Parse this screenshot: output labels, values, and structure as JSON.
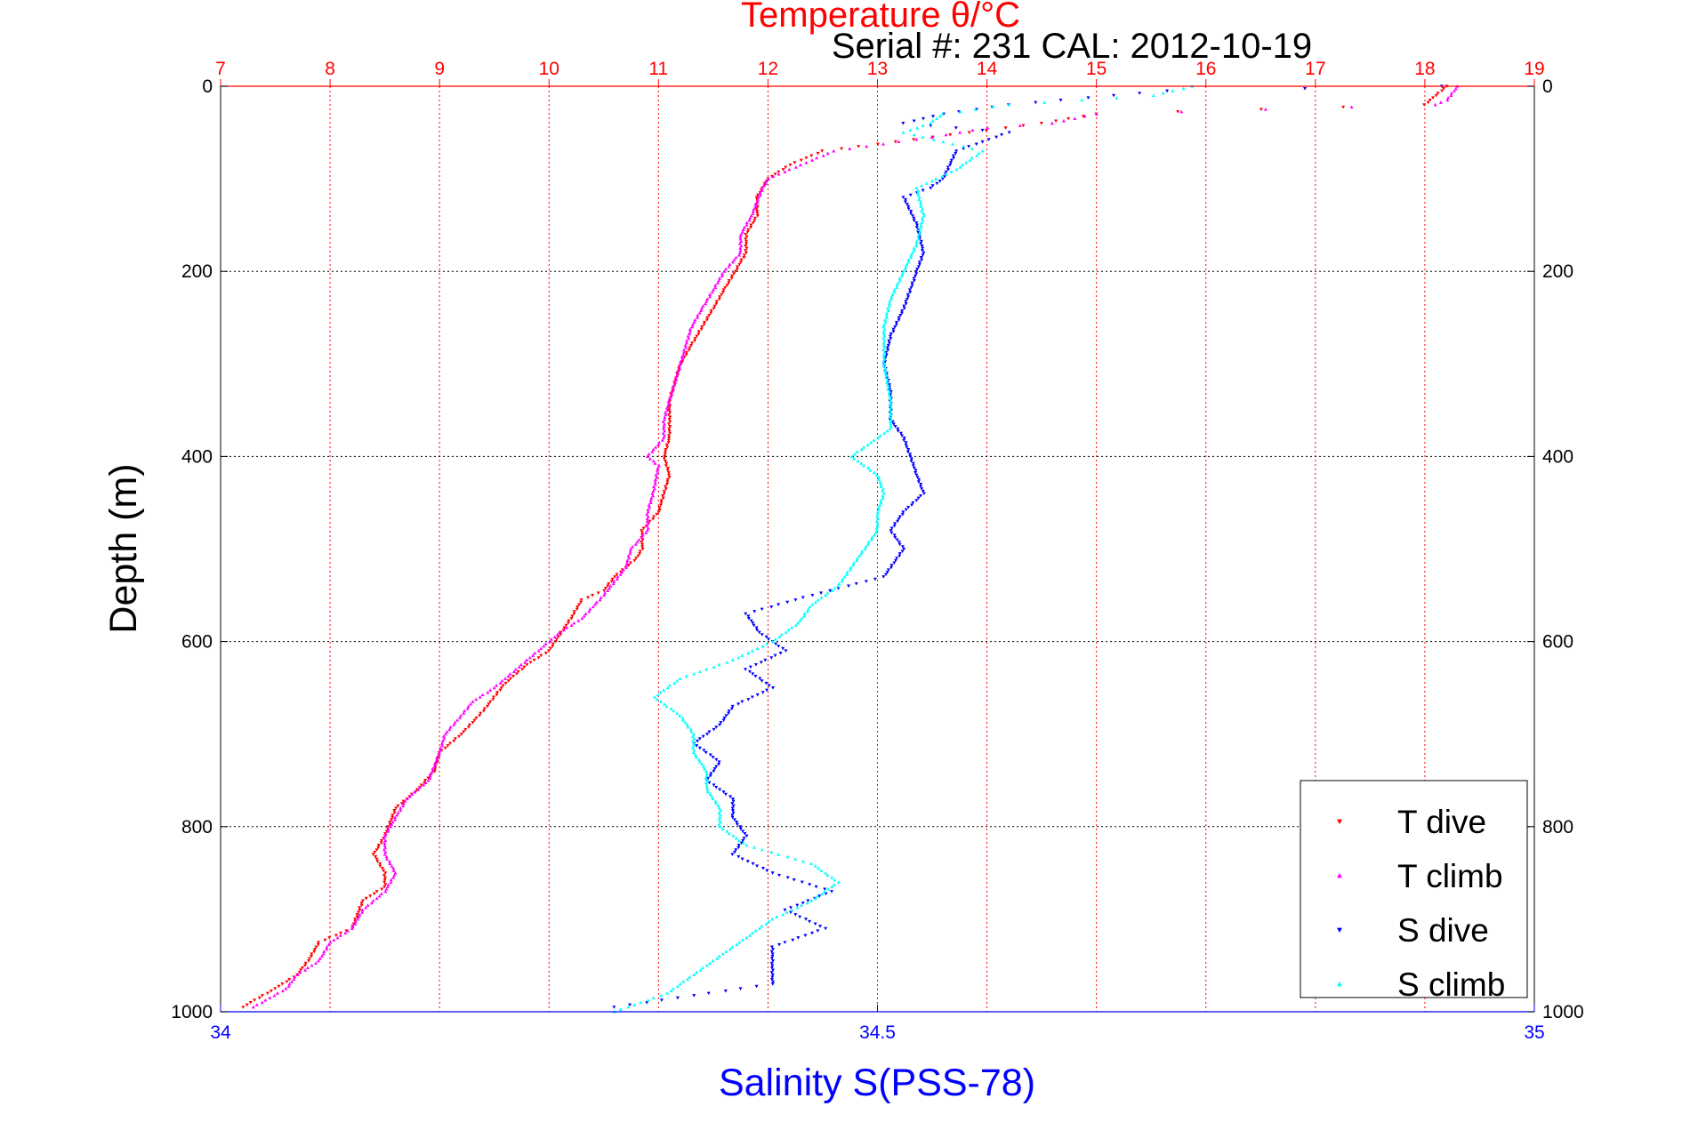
{
  "chart_data": {
    "type": "scatter",
    "title": "Temperature θ/°C",
    "subtitle": "Serial #: 231   CAL: 2012-10-19",
    "ylabel": "Depth (m)",
    "xlabel_bottom": "Salinity S(PSS-78)",
    "ylim": [
      0,
      1000
    ],
    "y_reversed": true,
    "y_ticks": [
      "0",
      "200",
      "400",
      "600",
      "800",
      "1000"
    ],
    "y_tick_values": [
      0,
      200,
      400,
      600,
      800,
      1000
    ],
    "temp_axis": {
      "range": [
        7,
        19
      ],
      "ticks": [
        "7",
        "8",
        "9",
        "10",
        "11",
        "12",
        "13",
        "14",
        "15",
        "16",
        "17",
        "18",
        "19"
      ],
      "tick_values": [
        7,
        8,
        9,
        10,
        11,
        12,
        13,
        14,
        15,
        16,
        17,
        18,
        19
      ],
      "color": "#ff0000"
    },
    "salinity_axis": {
      "range": [
        34,
        35
      ],
      "ticks": [
        "34",
        "34.5",
        "35"
      ],
      "tick_values": [
        34,
        34.5,
        35
      ],
      "color": "#0000ff"
    },
    "grid": true,
    "legend_position": "bottom-right",
    "series": [
      {
        "name": "T dive",
        "axis": "temperature",
        "marker": "triangle-down",
        "color": "#ff0000",
        "points": [
          [
            18.2,
            0
          ],
          [
            18.1,
            10
          ],
          [
            18.0,
            20
          ],
          [
            16.5,
            25
          ],
          [
            15.0,
            30
          ],
          [
            14.5,
            40
          ],
          [
            13.5,
            55
          ],
          [
            12.5,
            70
          ],
          [
            12.2,
            85
          ],
          [
            12.0,
            100
          ],
          [
            11.9,
            120
          ],
          [
            11.9,
            140
          ],
          [
            11.8,
            160
          ],
          [
            11.8,
            180
          ],
          [
            11.7,
            200
          ],
          [
            11.6,
            220
          ],
          [
            11.5,
            240
          ],
          [
            11.4,
            260
          ],
          [
            11.3,
            280
          ],
          [
            11.2,
            300
          ],
          [
            11.15,
            320
          ],
          [
            11.1,
            340
          ],
          [
            11.1,
            360
          ],
          [
            11.1,
            380
          ],
          [
            11.05,
            400
          ],
          [
            11.1,
            420
          ],
          [
            11.05,
            440
          ],
          [
            11.0,
            460
          ],
          [
            10.85,
            480
          ],
          [
            10.85,
            500
          ],
          [
            10.8,
            510
          ],
          [
            10.6,
            530
          ],
          [
            10.5,
            545
          ],
          [
            10.3,
            555
          ],
          [
            10.2,
            575
          ],
          [
            10.0,
            610
          ],
          [
            9.8,
            625
          ],
          [
            9.6,
            645
          ],
          [
            9.5,
            660
          ],
          [
            9.4,
            675
          ],
          [
            9.2,
            700
          ],
          [
            9.0,
            720
          ],
          [
            8.95,
            740
          ],
          [
            8.8,
            760
          ],
          [
            8.6,
            780
          ],
          [
            8.5,
            810
          ],
          [
            8.4,
            830
          ],
          [
            8.5,
            850
          ],
          [
            8.5,
            865
          ],
          [
            8.3,
            880
          ],
          [
            8.2,
            910
          ],
          [
            7.9,
            925
          ],
          [
            7.8,
            945
          ],
          [
            7.7,
            960
          ],
          [
            7.5,
            975
          ],
          [
            7.2,
            995
          ]
        ]
      },
      {
        "name": "T climb",
        "axis": "temperature",
        "marker": "triangle-up",
        "color": "#ff00ff",
        "points": [
          [
            18.3,
            0
          ],
          [
            18.2,
            15
          ],
          [
            18.1,
            20
          ],
          [
            15.0,
            30
          ],
          [
            14.8,
            35
          ],
          [
            14.6,
            40
          ],
          [
            14.0,
            45
          ],
          [
            13.5,
            55
          ],
          [
            12.6,
            70
          ],
          [
            12.4,
            80
          ],
          [
            12.2,
            90
          ],
          [
            12.0,
            100
          ],
          [
            11.95,
            110
          ],
          [
            11.85,
            140
          ],
          [
            11.75,
            160
          ],
          [
            11.75,
            180
          ],
          [
            11.6,
            200
          ],
          [
            11.5,
            220
          ],
          [
            11.4,
            240
          ],
          [
            11.3,
            260
          ],
          [
            11.25,
            280
          ],
          [
            11.2,
            300
          ],
          [
            11.15,
            320
          ],
          [
            11.1,
            340
          ],
          [
            11.05,
            360
          ],
          [
            11.05,
            380
          ],
          [
            10.9,
            400
          ],
          [
            11.0,
            410
          ],
          [
            10.95,
            440
          ],
          [
            10.9,
            460
          ],
          [
            10.9,
            480
          ],
          [
            10.75,
            500
          ],
          [
            10.7,
            520
          ],
          [
            10.6,
            535
          ],
          [
            10.5,
            550
          ],
          [
            10.3,
            575
          ],
          [
            10.1,
            590
          ],
          [
            9.9,
            610
          ],
          [
            9.7,
            630
          ],
          [
            9.5,
            650
          ],
          [
            9.3,
            665
          ],
          [
            9.2,
            680
          ],
          [
            9.05,
            700
          ],
          [
            9.0,
            720
          ],
          [
            8.9,
            750
          ],
          [
            8.7,
            770
          ],
          [
            8.6,
            790
          ],
          [
            8.5,
            810
          ],
          [
            8.5,
            830
          ],
          [
            8.6,
            850
          ],
          [
            8.5,
            870
          ],
          [
            8.3,
            890
          ],
          [
            8.2,
            910
          ],
          [
            8.0,
            925
          ],
          [
            7.9,
            945
          ],
          [
            7.7,
            960
          ],
          [
            7.6,
            975
          ],
          [
            7.3,
            995
          ]
        ]
      },
      {
        "name": "S dive",
        "axis": "salinity",
        "marker": "triangle-down",
        "color": "#0000ff",
        "points": [
          [
            34.93,
            0
          ],
          [
            34.72,
            5
          ],
          [
            34.68,
            10
          ],
          [
            34.6,
            20
          ],
          [
            34.55,
            30
          ],
          [
            34.52,
            40
          ],
          [
            34.6,
            50
          ],
          [
            34.56,
            70
          ],
          [
            34.55,
            100
          ],
          [
            34.54,
            110
          ],
          [
            34.52,
            120
          ],
          [
            34.53,
            150
          ],
          [
            34.535,
            180
          ],
          [
            34.53,
            200
          ],
          [
            34.52,
            240
          ],
          [
            34.51,
            270
          ],
          [
            34.505,
            300
          ],
          [
            34.51,
            330
          ],
          [
            34.51,
            360
          ],
          [
            34.52,
            380
          ],
          [
            34.525,
            400
          ],
          [
            34.53,
            420
          ],
          [
            34.535,
            440
          ],
          [
            34.52,
            460
          ],
          [
            34.51,
            480
          ],
          [
            34.52,
            500
          ],
          [
            34.505,
            530
          ],
          [
            34.45,
            550
          ],
          [
            34.4,
            570
          ],
          [
            34.41,
            590
          ],
          [
            34.43,
            610
          ],
          [
            34.4,
            630
          ],
          [
            34.42,
            650
          ],
          [
            34.39,
            670
          ],
          [
            34.38,
            690
          ],
          [
            34.36,
            710
          ],
          [
            34.38,
            730
          ],
          [
            34.37,
            750
          ],
          [
            34.39,
            770
          ],
          [
            34.39,
            790
          ],
          [
            34.4,
            810
          ],
          [
            34.39,
            830
          ],
          [
            34.42,
            850
          ],
          [
            34.465,
            870
          ],
          [
            34.43,
            890
          ],
          [
            34.46,
            910
          ],
          [
            34.42,
            930
          ],
          [
            34.42,
            950
          ],
          [
            34.42,
            970
          ],
          [
            34.3,
            995
          ]
        ]
      },
      {
        "name": "S climb",
        "axis": "salinity",
        "marker": "triangle-up",
        "color": "#00ffff",
        "points": [
          [
            34.74,
            0
          ],
          [
            34.71,
            10
          ],
          [
            34.6,
            20
          ],
          [
            34.55,
            30
          ],
          [
            34.54,
            40
          ],
          [
            34.52,
            50
          ],
          [
            34.58,
            70
          ],
          [
            34.56,
            90
          ],
          [
            34.53,
            110
          ],
          [
            34.535,
            140
          ],
          [
            34.53,
            170
          ],
          [
            34.52,
            200
          ],
          [
            34.51,
            230
          ],
          [
            34.505,
            260
          ],
          [
            34.505,
            300
          ],
          [
            34.51,
            340
          ],
          [
            34.51,
            370
          ],
          [
            34.48,
            400
          ],
          [
            34.5,
            420
          ],
          [
            34.505,
            440
          ],
          [
            34.5,
            460
          ],
          [
            34.5,
            480
          ],
          [
            34.49,
            500
          ],
          [
            34.48,
            520
          ],
          [
            34.47,
            540
          ],
          [
            34.45,
            560
          ],
          [
            34.44,
            580
          ],
          [
            34.42,
            600
          ],
          [
            34.39,
            620
          ],
          [
            34.35,
            640
          ],
          [
            34.33,
            660
          ],
          [
            34.35,
            680
          ],
          [
            34.36,
            700
          ],
          [
            34.36,
            720
          ],
          [
            34.37,
            740
          ],
          [
            34.37,
            760
          ],
          [
            34.38,
            780
          ],
          [
            34.38,
            800
          ],
          [
            34.4,
            820
          ],
          [
            34.45,
            840
          ],
          [
            34.47,
            860
          ],
          [
            34.45,
            880
          ],
          [
            34.42,
            900
          ],
          [
            34.4,
            920
          ],
          [
            34.38,
            940
          ],
          [
            34.36,
            960
          ],
          [
            34.34,
            980
          ],
          [
            34.3,
            1000
          ]
        ]
      }
    ]
  }
}
